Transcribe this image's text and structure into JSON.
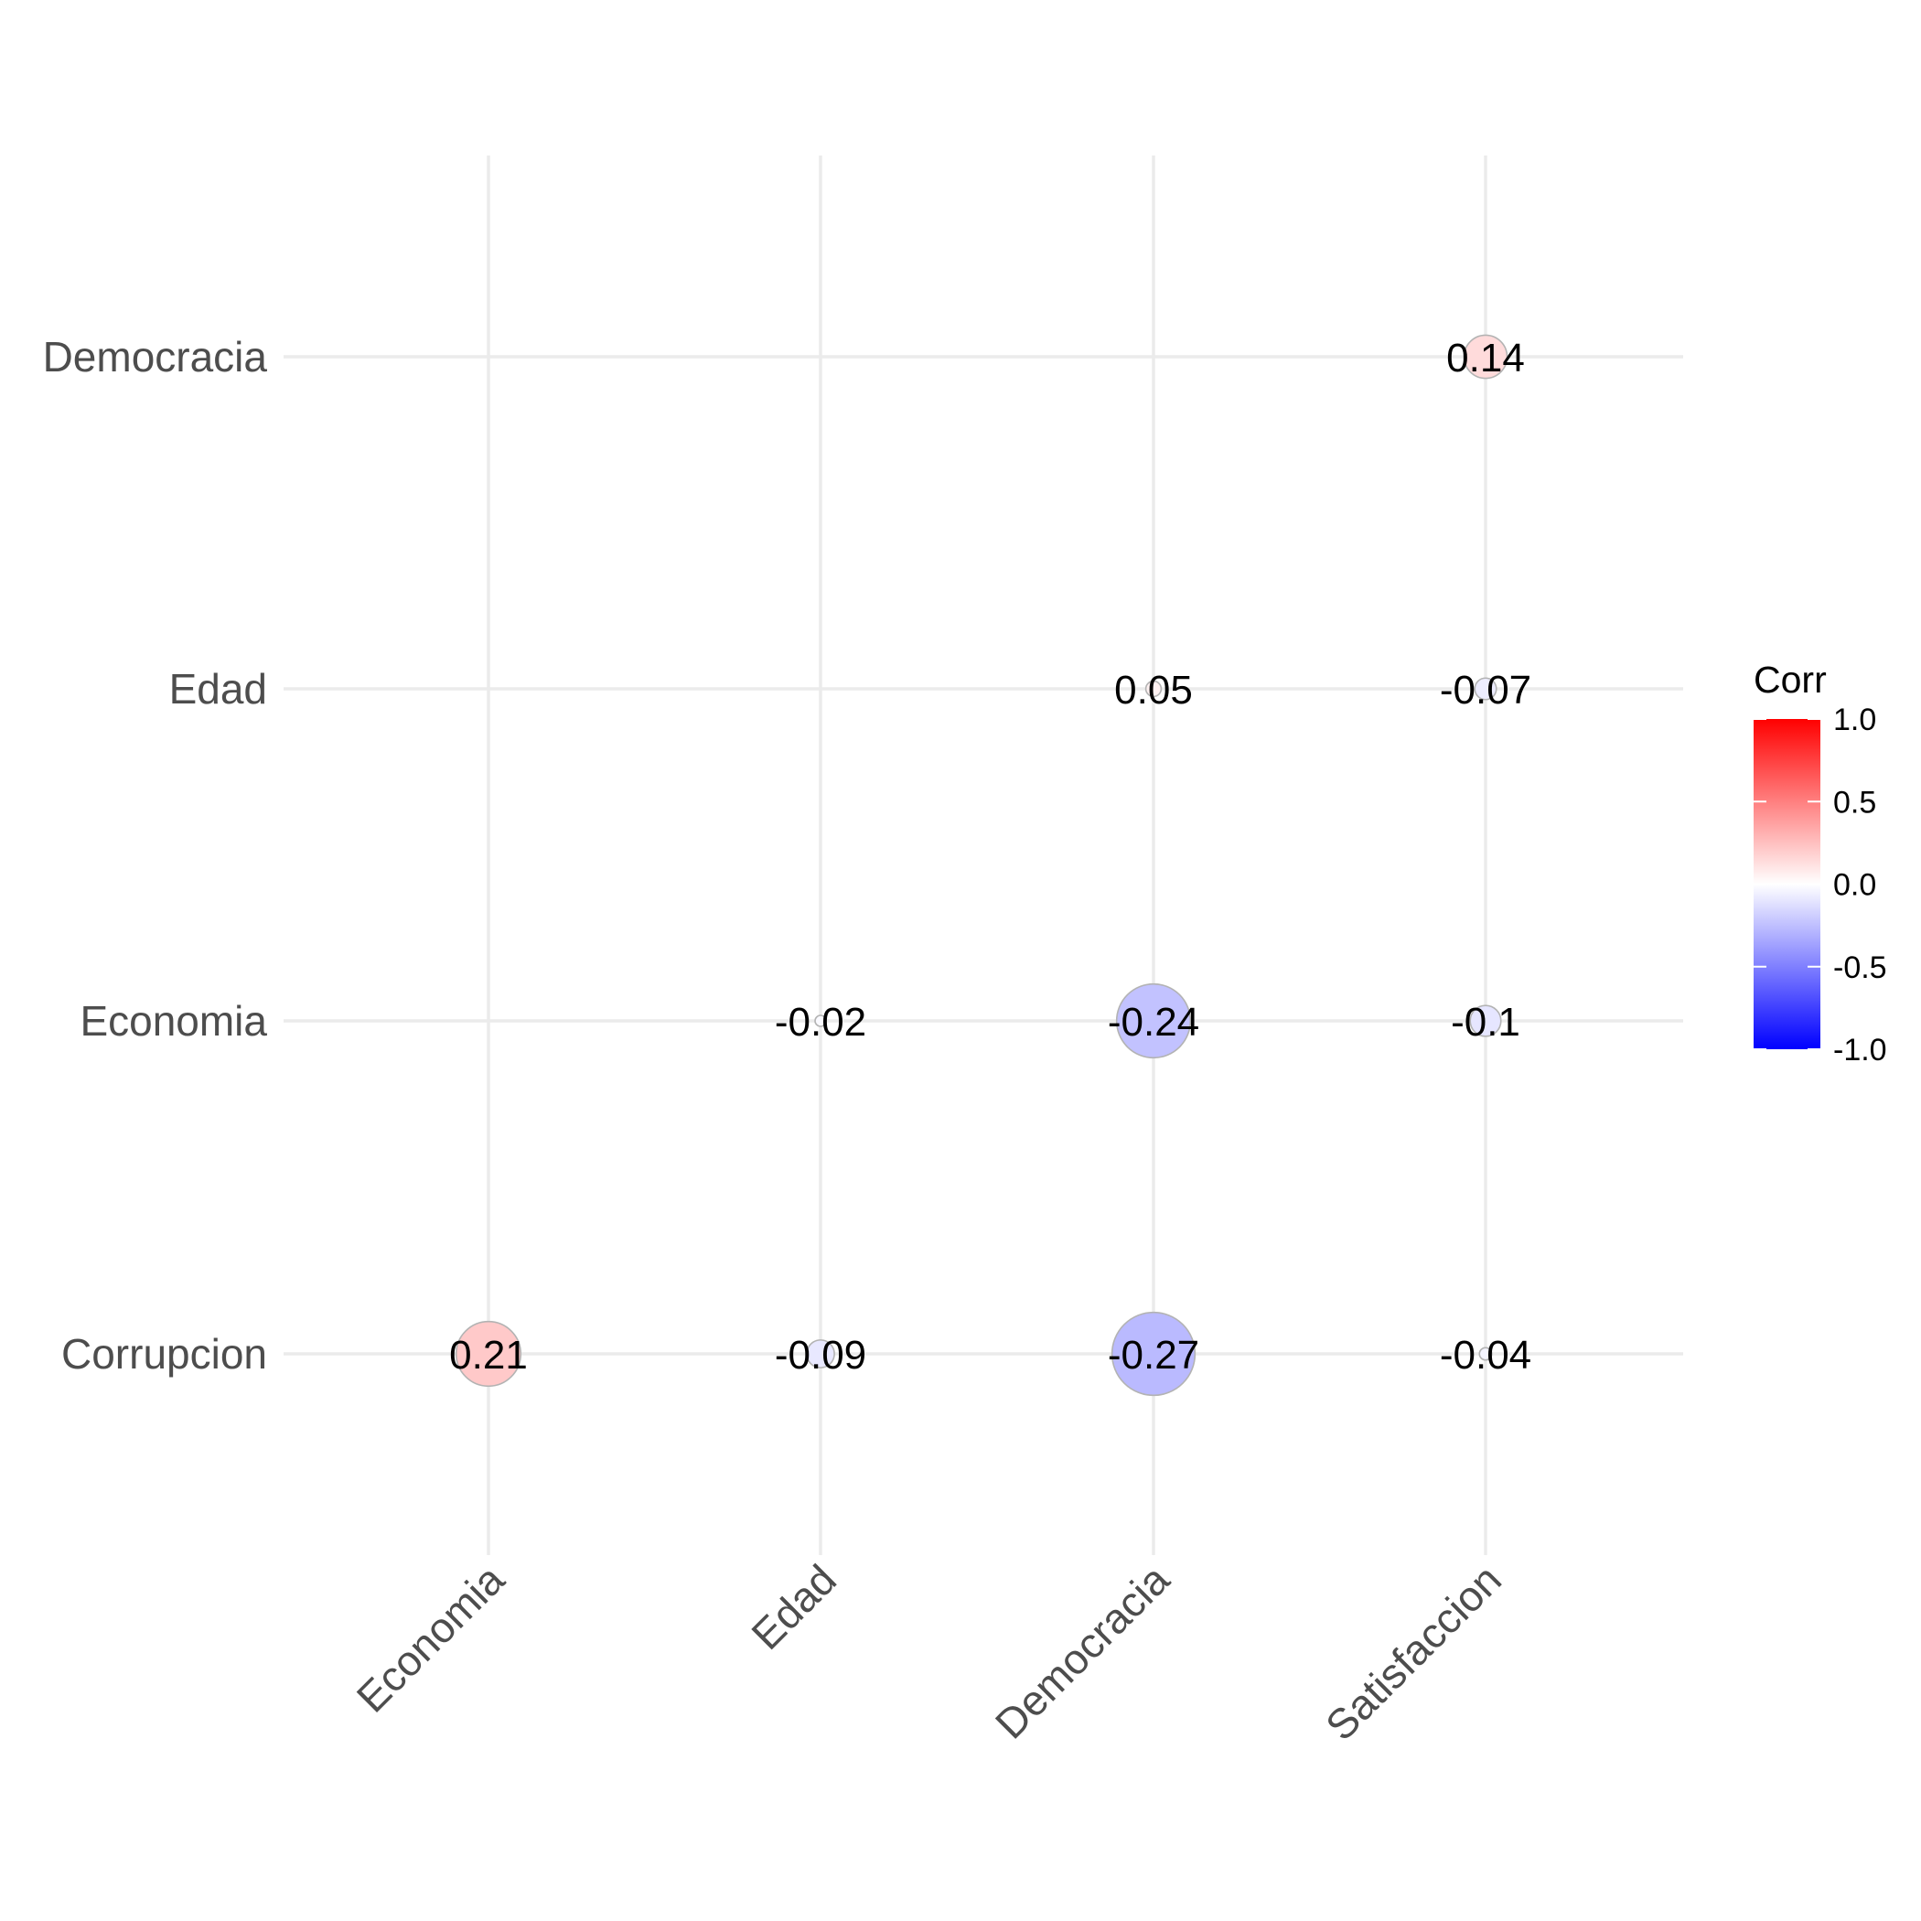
{
  "chart_data": {
    "type": "bubble-correlogram",
    "x_categories": [
      "Economia",
      "Edad",
      "Democracia",
      "Satisfaccion"
    ],
    "y_categories": [
      "Corrupcion",
      "Economia",
      "Edad",
      "Democracia"
    ],
    "cells": [
      {
        "x": "Economia",
        "y": "Corrupcion",
        "value": 0.21,
        "label": "0.21"
      },
      {
        "x": "Edad",
        "y": "Corrupcion",
        "value": -0.09,
        "label": "-0.09"
      },
      {
        "x": "Democracia",
        "y": "Corrupcion",
        "value": -0.27,
        "label": "-0.27"
      },
      {
        "x": "Satisfaccion",
        "y": "Corrupcion",
        "value": -0.04,
        "label": "-0.04"
      },
      {
        "x": "Edad",
        "y": "Economia",
        "value": -0.02,
        "label": "-0.02"
      },
      {
        "x": "Democracia",
        "y": "Economia",
        "value": -0.24,
        "label": "-0.24"
      },
      {
        "x": "Satisfaccion",
        "y": "Economia",
        "value": -0.1,
        "label": "-0.1"
      },
      {
        "x": "Democracia",
        "y": "Edad",
        "value": 0.05,
        "label": "0.05"
      },
      {
        "x": "Satisfaccion",
        "y": "Edad",
        "value": -0.07,
        "label": "-0.07"
      },
      {
        "x": "Satisfaccion",
        "y": "Democracia",
        "value": 0.14,
        "label": "0.14"
      }
    ],
    "legend": {
      "title": "Corr",
      "range": [
        -1,
        1
      ],
      "ticks": [
        "1.0",
        "0.5",
        "0.0",
        "-0.5",
        "-1.0"
      ],
      "colors": {
        "low": "#0000ff",
        "mid": "#ffffff",
        "high": "#ff0000"
      },
      "placement": "right"
    },
    "grid": true
  }
}
